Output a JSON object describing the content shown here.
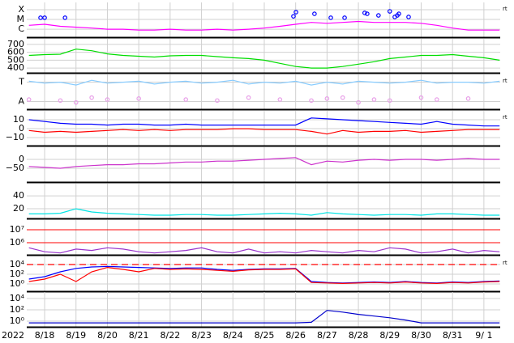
{
  "time_axis": {
    "xlabel": "2022",
    "xlim": [
      -0.57,
      14.52
    ],
    "x": [
      -0.5,
      0,
      0.5,
      1,
      1.5,
      2,
      2.5,
      3,
      3.5,
      4,
      4.5,
      5,
      5.5,
      6,
      6.5,
      7,
      7.5,
      8,
      8.5,
      9,
      9.5,
      10,
      10.5,
      11,
      11.5,
      12,
      12.5,
      13,
      13.5,
      14,
      14.5
    ],
    "xticks": [
      {
        "value": 0,
        "label": "8/18"
      },
      {
        "value": 1,
        "label": "8/19"
      },
      {
        "value": 2,
        "label": "8/20"
      },
      {
        "value": 3,
        "label": "8/21"
      },
      {
        "value": 4,
        "label": "8/22"
      },
      {
        "value": 5,
        "label": "8/23"
      },
      {
        "value": 6,
        "label": "8/24"
      },
      {
        "value": 7,
        "label": "8/25"
      },
      {
        "value": 8,
        "label": "8/26"
      },
      {
        "value": 9,
        "label": "8/27"
      },
      {
        "value": 10,
        "label": "8/28"
      },
      {
        "value": 11,
        "label": "8/29"
      },
      {
        "value": 12,
        "label": "8/30"
      },
      {
        "value": 13,
        "label": "8/31"
      },
      {
        "value": 14,
        "label": "9/ 1"
      }
    ]
  },
  "chart_data": [
    {
      "type": "line",
      "log": true,
      "right_label": "rt",
      "ylim": [
        1.5e-07,
        0.00056
      ],
      "yticks": [
        {
          "value": 0.0001,
          "label": "X"
        },
        {
          "value": 1e-05,
          "label": "M"
        },
        {
          "value": 1e-06,
          "label": "C"
        }
      ],
      "series": [
        {
          "color": "#ff00ff",
          "values": [
            2.5e-06,
            3.2e-06,
            2e-06,
            1.6e-06,
            1.3e-06,
            1e-06,
            1e-06,
            8e-07,
            8e-07,
            1e-06,
            8e-07,
            8e-07,
            1e-06,
            8e-07,
            1e-06,
            1.3e-06,
            2e-06,
            3.2e-06,
            5e-06,
            4e-06,
            5e-06,
            6.3e-06,
            5e-06,
            5e-06,
            5e-06,
            4e-06,
            2.5e-06,
            1.3e-06,
            8e-07,
            8e-07,
            8e-07
          ]
        },
        {
          "color": "#0000ff",
          "mode": "markers",
          "x": [
            -0.13,
            0,
            0.65,
            8.01,
            7.93,
            8.6,
            9.12,
            9.56,
            10.2,
            10.28,
            10.64,
            11,
            11.16,
            11.24,
            11.29,
            11.6
          ],
          "values": [
            1.5e-05,
            1.5e-05,
            1.5e-05,
            5.6e-05,
            2.1e-05,
            3.8e-05,
            1.5e-05,
            1.5e-05,
            4.7e-05,
            3.8e-05,
            2.6e-05,
            6.8e-05,
            1.8e-05,
            2.6e-05,
            3.8e-05,
            1.8e-05
          ]
        }
      ]
    },
    {
      "type": "line",
      "ylim": [
        340,
        770
      ],
      "yticks": [
        400,
        500,
        600,
        700
      ],
      "series": [
        {
          "color": "#00dd00",
          "values": [
            560,
            570,
            575,
            640,
            620,
            580,
            560,
            550,
            540,
            555,
            560,
            560,
            545,
            530,
            520,
            500,
            460,
            420,
            400,
            400,
            420,
            450,
            480,
            520,
            540,
            560,
            560,
            570,
            550,
            530,
            500
          ]
        }
      ]
    },
    {
      "type": "line",
      "right_label": "rt",
      "ylim": [
        -0.4,
        1.4
      ],
      "yticks": [
        {
          "value": 1,
          "label": "T"
        },
        {
          "value": 0,
          "label": "A"
        }
      ],
      "series": [
        {
          "color": "#88ccff",
          "values": [
            1.05,
            0.95,
            1.0,
            0.85,
            1.1,
            0.95,
            1.0,
            1.05,
            0.9,
            1.0,
            1.05,
            0.95,
            1.0,
            1.1,
            0.9,
            1.0,
            0.95,
            1.05,
            0.85,
            1.0,
            0.9,
            1.05,
            1.0,
            0.95,
            1.0,
            1.1,
            0.95,
            1.0,
            1.0,
            0.95,
            1.05
          ]
        },
        {
          "color": "#e8a0e8",
          "mode": "markers",
          "values": [
            0.1,
            null,
            0.05,
            -0.05,
            0.2,
            0.1,
            null,
            0.15,
            null,
            null,
            0.1,
            null,
            0.05,
            null,
            0.2,
            null,
            0.1,
            null,
            0.05,
            0.15,
            0.2,
            -0.05,
            0.1,
            0.05,
            null,
            0.2,
            0.1,
            null,
            0.15,
            null,
            null
          ]
        }
      ]
    },
    {
      "type": "line",
      "right_label": "rt",
      "ylim": [
        -19,
        20
      ],
      "yticks": [
        {
          "value": 10,
          "label": "10"
        },
        {
          "value": 0,
          "label": "0"
        },
        {
          "value": -10,
          "label": "−10"
        }
      ],
      "series": [
        {
          "color": "#0000ff",
          "values": [
            10,
            8,
            6,
            5,
            5,
            4,
            5,
            5,
            4,
            4,
            5,
            4,
            4,
            4,
            4,
            4,
            4,
            4,
            12,
            11,
            10,
            9,
            8,
            7,
            6,
            5,
            8,
            5,
            4,
            3,
            3
          ]
        },
        {
          "color": "#ff0000",
          "values": [
            -2,
            -4,
            -3,
            -4,
            -3,
            -2,
            -1,
            -2,
            -1,
            -2,
            -1,
            -1,
            -1,
            0,
            0,
            -1,
            -1,
            -1,
            -3,
            -6,
            -2,
            -4,
            -3,
            -3,
            -2,
            -4,
            -3,
            -2,
            -1,
            -1,
            -1
          ]
        }
      ]
    },
    {
      "type": "line",
      "ylim": [
        -127,
        68
      ],
      "yticks": [
        {
          "value": 0,
          "label": "0"
        },
        {
          "value": -50,
          "label": "−50"
        }
      ],
      "series": [
        {
          "color": "#cc33cc",
          "values": [
            -40,
            -45,
            -50,
            -40,
            -35,
            -30,
            -30,
            -25,
            -25,
            -20,
            -15,
            -15,
            -10,
            -10,
            -5,
            0,
            5,
            10,
            -30,
            -10,
            -15,
            -5,
            0,
            -5,
            0,
            0,
            -5,
            0,
            5,
            0,
            0
          ]
        }
      ]
    },
    {
      "type": "line",
      "ylim": [
        5,
        59
      ],
      "yticks": [
        20,
        40
      ],
      "series": [
        {
          "color": "#00e5e5",
          "values": [
            12,
            12,
            13,
            20,
            15,
            13,
            12,
            11,
            10,
            10,
            11,
            11,
            10,
            10,
            11,
            12,
            13,
            12,
            10,
            14,
            12,
            11,
            10,
            11,
            11,
            10,
            12,
            12,
            11,
            10,
            10
          ]
        }
      ]
    },
    {
      "type": "line",
      "log": true,
      "grid_color": "#ff0000",
      "ylim": [
        115000.0,
        56000000.0
      ],
      "yticks": [
        {
          "value": 10000000.0,
          "label": "10⁷"
        },
        {
          "value": 1000000.0,
          "label": "10⁶"
        }
      ],
      "series": [
        {
          "color": "#9933cc",
          "values": [
            400000.0,
            200000.0,
            160000.0,
            320000.0,
            250000.0,
            400000.0,
            320000.0,
            200000.0,
            160000.0,
            200000.0,
            250000.0,
            400000.0,
            200000.0,
            160000.0,
            320000.0,
            160000.0,
            200000.0,
            160000.0,
            250000.0,
            200000.0,
            160000.0,
            250000.0,
            200000.0,
            400000.0,
            320000.0,
            160000.0,
            200000.0,
            320000.0,
            160000.0,
            250000.0,
            200000.0
          ]
        }
      ]
    },
    {
      "type": "line",
      "log": true,
      "right_label": "rt",
      "threshold": 10000.0,
      "ylim": [
        0.032,
        470000.0
      ],
      "yticks": [
        {
          "value": 10000.0,
          "label": "10⁴"
        },
        {
          "value": 100,
          "label": "10²"
        },
        {
          "value": 1,
          "label": "10⁰"
        }
      ],
      "series": [
        {
          "color": "#0000ff",
          "values": [
            10,
            32,
            320,
            1600,
            3200,
            4000,
            3200,
            2500,
            2000,
            1600,
            2000,
            2000,
            1000,
            630,
            1000,
            1260,
            1260,
            1600,
            3.2,
            2,
            1.6,
            2,
            2.5,
            2,
            3.2,
            2,
            1.6,
            2.5,
            2,
            3.2,
            4
          ]
        },
        {
          "color": "#ff0000",
          "values": [
            3.2,
            10,
            100,
            3.2,
            320,
            2500,
            1000,
            320,
            1600,
            1000,
            1260,
            1000,
            630,
            400,
            800,
            1000,
            1000,
            1260,
            2,
            1.6,
            1.26,
            1.6,
            2,
            1.6,
            2.5,
            1.6,
            1.26,
            2,
            1.6,
            2.5,
            3.2
          ]
        }
      ]
    },
    {
      "type": "line",
      "log": true,
      "ylim": [
        0.1,
        140000.0
      ],
      "yticks": [
        {
          "value": 10000.0,
          "label": "10⁴"
        },
        {
          "value": 100,
          "label": "10²"
        },
        {
          "value": 1,
          "label": "10⁰"
        }
      ],
      "series": [
        {
          "color": "#0000cc",
          "values": [
            0.5,
            0.5,
            0.5,
            0.5,
            0.5,
            0.5,
            0.5,
            0.5,
            0.5,
            0.5,
            0.5,
            0.5,
            0.5,
            0.5,
            0.5,
            0.5,
            0.5,
            0.5,
            0.63,
            80,
            40,
            16,
            8,
            4,
            1.6,
            0.5,
            0.5,
            0.5,
            0.5,
            0.5,
            0.5
          ]
        }
      ]
    }
  ]
}
